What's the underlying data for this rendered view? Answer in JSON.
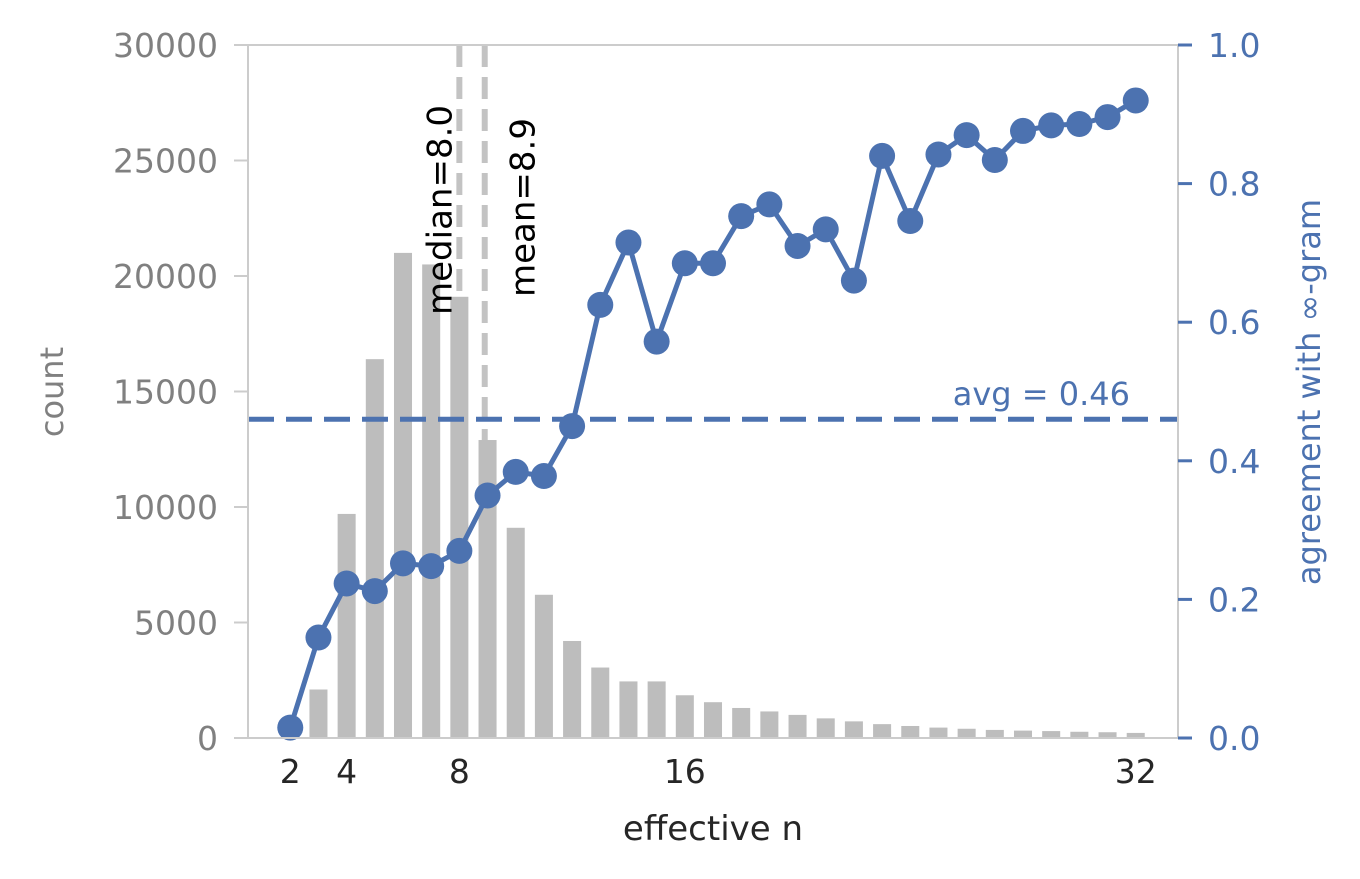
{
  "chart_data": {
    "type": "bar",
    "xlabel": "effective n",
    "ylabel_left": "count",
    "ylabel_right": "agreement with ∞-gram",
    "xlim": [
      0.5,
      33.5
    ],
    "ylim_left": [
      0,
      30000
    ],
    "ylim_right": [
      0.0,
      1.0
    ],
    "x_ticks": [
      2,
      4,
      8,
      16,
      32
    ],
    "y_ticks_left": [
      "0",
      "5000",
      "10000",
      "15000",
      "20000",
      "25000",
      "30000"
    ],
    "y_ticks_right": [
      "0.0",
      "0.2",
      "0.4",
      "0.6",
      "0.8",
      "1.0"
    ],
    "grid": false,
    "colors": {
      "bars": "#bdbdbd",
      "line": "#4c72b0",
      "left_axis": "#808080",
      "right_axis": "#4c72b0",
      "ref_lines": "#bdbdbd",
      "spine": "#cccccc"
    },
    "histogram": {
      "x": [
        2,
        3,
        4,
        5,
        6,
        7,
        8,
        9,
        10,
        11,
        12,
        13,
        14,
        15,
        16,
        17,
        18,
        19,
        20,
        21,
        22,
        23,
        24,
        25,
        26,
        27,
        28,
        29,
        30,
        31,
        32
      ],
      "counts": [
        300,
        2100,
        9700,
        16400,
        21000,
        20500,
        19100,
        12900,
        9100,
        6200,
        4200,
        3050,
        2450,
        2450,
        1850,
        1550,
        1300,
        1150,
        1000,
        850,
        720,
        600,
        520,
        450,
        400,
        350,
        320,
        300,
        270,
        250,
        220
      ]
    },
    "series": [
      {
        "axis": "right",
        "x": [
          2,
          3,
          4,
          5,
          6,
          7,
          8,
          9,
          10,
          11,
          12,
          13,
          14,
          15,
          16,
          17,
          18,
          19,
          20,
          21,
          22,
          23,
          24,
          25,
          26,
          27,
          28,
          29,
          30,
          31,
          32
        ],
        "values": [
          0.015,
          0.145,
          0.223,
          0.212,
          0.252,
          0.248,
          0.27,
          0.35,
          0.384,
          0.378,
          0.45,
          0.625,
          0.715,
          0.572,
          0.685,
          0.685,
          0.753,
          0.77,
          0.71,
          0.734,
          0.66,
          0.84,
          0.746,
          0.842,
          0.87,
          0.834,
          0.876,
          0.884,
          0.886,
          0.896,
          0.92
        ]
      }
    ],
    "reference_lines": [
      {
        "label": "median=8.0",
        "x": 8.0
      },
      {
        "label": "mean=8.9",
        "x": 8.9
      }
    ],
    "average_line": {
      "label": "avg = 0.46",
      "y": 0.46
    }
  }
}
